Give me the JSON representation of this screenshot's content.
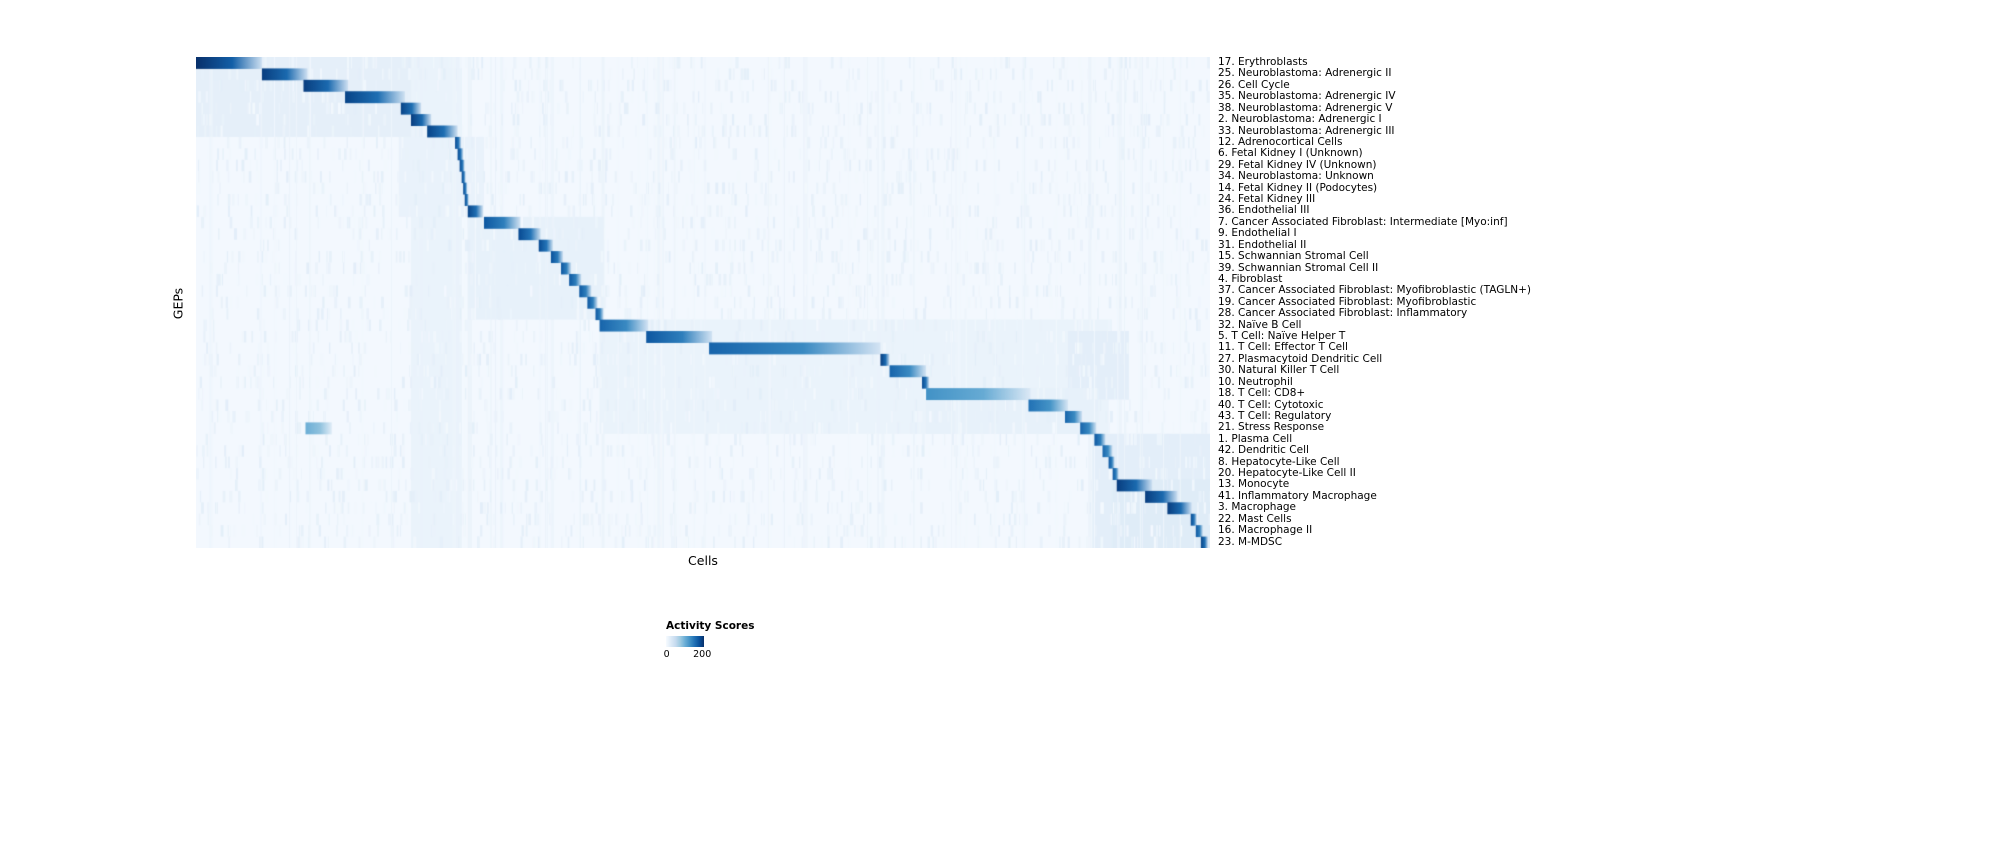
{
  "chart_data": {
    "type": "heatmap",
    "title": "",
    "xlabel": "Cells",
    "ylabel": "GEPs",
    "rows": [
      "17. Erythroblasts",
      "25. Neuroblastoma: Adrenergic II",
      "26. Cell Cycle",
      "35. Neuroblastoma: Adrenergic IV",
      "38. Neuroblastoma: Adrenergic V",
      "2. Neuroblastoma: Adrenergic I",
      "33. Neuroblastoma: Adrenergic III",
      "12. Adrenocortical Cells",
      "6. Fetal Kidney I (Unknown)",
      "29. Fetal Kidney IV (Unknown)",
      "34. Neuroblastoma: Unknown",
      "14. Fetal Kidney II (Podocytes)",
      "24. Fetal Kidney III",
      "36. Endothelial III",
      "7. Cancer Associated Fibroblast: Intermediate [Myo:inf]",
      "9. Endothelial I",
      "31. Endothelial II",
      "15. Schwannian Stromal Cell",
      "39. Schwannian Stromal Cell II",
      "4. Fibroblast",
      "37. Cancer Associated Fibroblast: Myofibroblastic (TAGLN+)",
      "19. Cancer Associated Fibroblast: Myofibroblastic",
      "28. Cancer Associated Fibroblast: Inflammatory",
      "32. Naïve B Cell",
      "5. T Cell: Naïve Helper T",
      "11. T Cell: Effector T Cell",
      "27. Plasmacytoid Dendritic Cell",
      "30. Natural Killer T Cell",
      "10. Neutrophil",
      "18. T Cell: CD8+",
      "40. T Cell: Cytotoxic",
      "43. T Cell: Regulatory",
      "21. Stress Response",
      "1. Plasma Cell",
      "42. Dendritic Cell",
      "8. Hepatocyte-Like Cell",
      "20. Hepatocyte-Like Cell II",
      "13. Monocyte",
      "41. Inflammatory Macrophage",
      "3. Macrophage",
      "22. Mast Cells",
      "16. Macrophage II",
      "23. M-MDSC"
    ],
    "colorbar": {
      "title": "Activity Scores",
      "ticks": [
        "0",
        "200"
      ],
      "vmin": 0,
      "vmax": 200,
      "colormap": "Blues",
      "stops": [
        "#f7fbff",
        "#deebf7",
        "#c6dbef",
        "#9ecae1",
        "#6baed6",
        "#4292c6",
        "#2171b5",
        "#08519c",
        "#08306b"
      ]
    },
    "background_value": 4,
    "blocks": [
      {
        "r": 0,
        "x0": 0.0,
        "x1": 0.065,
        "v": 200
      },
      {
        "r": 1,
        "x0": 0.065,
        "x1": 0.11,
        "v": 190
      },
      {
        "r": 2,
        "x0": 0.106,
        "x1": 0.15,
        "v": 190
      },
      {
        "r": 3,
        "x0": 0.147,
        "x1": 0.206,
        "v": 185
      },
      {
        "r": 4,
        "x0": 0.202,
        "x1": 0.222,
        "v": 185
      },
      {
        "r": 5,
        "x0": 0.212,
        "x1": 0.232,
        "v": 190
      },
      {
        "r": 6,
        "x0": 0.228,
        "x1": 0.258,
        "v": 185
      },
      {
        "r": 7,
        "x0": 0.2555,
        "x1": 0.2615,
        "v": 180
      },
      {
        "r": 8,
        "x0": 0.258,
        "x1": 0.2635,
        "v": 180
      },
      {
        "r": 9,
        "x0": 0.26,
        "x1": 0.265,
        "v": 180
      },
      {
        "r": 10,
        "x0": 0.262,
        "x1": 0.266,
        "v": 180
      },
      {
        "r": 11,
        "x0": 0.2635,
        "x1": 0.2675,
        "v": 180
      },
      {
        "r": 12,
        "x0": 0.265,
        "x1": 0.269,
        "v": 180
      },
      {
        "r": 13,
        "x0": 0.268,
        "x1": 0.283,
        "v": 185
      },
      {
        "r": 14,
        "x0": 0.284,
        "x1": 0.32,
        "v": 170
      },
      {
        "r": 15,
        "x0": 0.318,
        "x1": 0.34,
        "v": 180
      },
      {
        "r": 16,
        "x0": 0.338,
        "x1": 0.352,
        "v": 180
      },
      {
        "r": 17,
        "x0": 0.35,
        "x1": 0.362,
        "v": 175
      },
      {
        "r": 18,
        "x0": 0.36,
        "x1": 0.37,
        "v": 170
      },
      {
        "r": 19,
        "x0": 0.368,
        "x1": 0.38,
        "v": 170
      },
      {
        "r": 20,
        "x0": 0.378,
        "x1": 0.39,
        "v": 170
      },
      {
        "r": 21,
        "x0": 0.386,
        "x1": 0.396,
        "v": 170
      },
      {
        "r": 22,
        "x0": 0.394,
        "x1": 0.402,
        "v": 170
      },
      {
        "r": 23,
        "x0": 0.398,
        "x1": 0.446,
        "v": 160
      },
      {
        "r": 24,
        "x0": 0.444,
        "x1": 0.509,
        "v": 170
      },
      {
        "r": 25,
        "x0": 0.506,
        "x1": 0.675,
        "v": 160
      },
      {
        "r": 26,
        "x0": 0.675,
        "x1": 0.684,
        "v": 190
      },
      {
        "r": 27,
        "x0": 0.684,
        "x1": 0.72,
        "v": 160
      },
      {
        "r": 28,
        "x0": 0.716,
        "x1": 0.723,
        "v": 180
      },
      {
        "r": 29,
        "x0": 0.72,
        "x1": 0.823,
        "v": 125
      },
      {
        "r": 30,
        "x0": 0.821,
        "x1": 0.86,
        "v": 150
      },
      {
        "r": 31,
        "x0": 0.857,
        "x1": 0.874,
        "v": 160
      },
      {
        "r": 32,
        "x0": 0.872,
        "x1": 0.888,
        "v": 160
      },
      {
        "r": 32,
        "x0": 0.108,
        "x1": 0.134,
        "v": 100
      },
      {
        "r": 33,
        "x0": 0.886,
        "x1": 0.897,
        "v": 170
      },
      {
        "r": 34,
        "x0": 0.894,
        "x1": 0.904,
        "v": 160
      },
      {
        "r": 35,
        "x0": 0.9,
        "x1": 0.906,
        "v": 170
      },
      {
        "r": 36,
        "x0": 0.904,
        "x1": 0.91,
        "v": 170
      },
      {
        "r": 37,
        "x0": 0.908,
        "x1": 0.943,
        "v": 190
      },
      {
        "r": 38,
        "x0": 0.936,
        "x1": 0.968,
        "v": 190
      },
      {
        "r": 39,
        "x0": 0.958,
        "x1": 0.982,
        "v": 190
      },
      {
        "r": 40,
        "x0": 0.981,
        "x1": 0.987,
        "v": 180
      },
      {
        "r": 41,
        "x0": 0.986,
        "x1": 0.993,
        "v": 170
      },
      {
        "r": 42,
        "x0": 0.991,
        "x1": 0.998,
        "v": 185
      }
    ],
    "soft_blocks": [
      {
        "r0": 0,
        "r1": 6,
        "x0": 0.0,
        "x1": 0.262,
        "v": 18
      },
      {
        "r0": 0,
        "r1": 42,
        "x0": 0.212,
        "x1": 0.262,
        "v": 13
      },
      {
        "r0": 7,
        "r1": 13,
        "x0": 0.2,
        "x1": 0.284,
        "v": 14
      },
      {
        "r0": 14,
        "r1": 22,
        "x0": 0.268,
        "x1": 0.402,
        "v": 16
      },
      {
        "r0": 23,
        "r1": 32,
        "x0": 0.398,
        "x1": 0.9,
        "v": 13
      },
      {
        "r0": 24,
        "r1": 29,
        "x0": 0.86,
        "x1": 0.92,
        "v": 20
      },
      {
        "r0": 29,
        "r1": 32,
        "x0": 0.72,
        "x1": 0.89,
        "v": 16
      },
      {
        "r0": 33,
        "r1": 42,
        "x0": 0.884,
        "x1": 1.0,
        "v": 20
      },
      {
        "r0": 37,
        "r1": 42,
        "x0": 0.904,
        "x1": 1.0,
        "v": 24
      }
    ],
    "col_streaks": [
      {
        "x0": 0.212,
        "x1": 0.218,
        "v": 14
      },
      {
        "x0": 0.222,
        "x1": 0.226,
        "v": 11
      },
      {
        "x0": 0.258,
        "x1": 0.262,
        "v": 14
      },
      {
        "x0": 0.268,
        "x1": 0.272,
        "v": 11
      },
      {
        "x0": 0.3,
        "x1": 0.303,
        "v": 10
      },
      {
        "x0": 0.35,
        "x1": 0.353,
        "v": 10
      },
      {
        "x0": 0.4,
        "x1": 0.403,
        "v": 11
      },
      {
        "x0": 0.455,
        "x1": 0.458,
        "v": 10
      },
      {
        "x0": 0.6,
        "x1": 0.603,
        "v": 9
      },
      {
        "x0": 0.676,
        "x1": 0.679,
        "v": 10
      },
      {
        "x0": 0.88,
        "x1": 0.883,
        "v": 11
      },
      {
        "x0": 0.91,
        "x1": 0.913,
        "v": 11
      }
    ],
    "noise": {
      "cells_per_row": 90,
      "max_value": 16,
      "column_lines": 60,
      "seed": 13
    }
  }
}
